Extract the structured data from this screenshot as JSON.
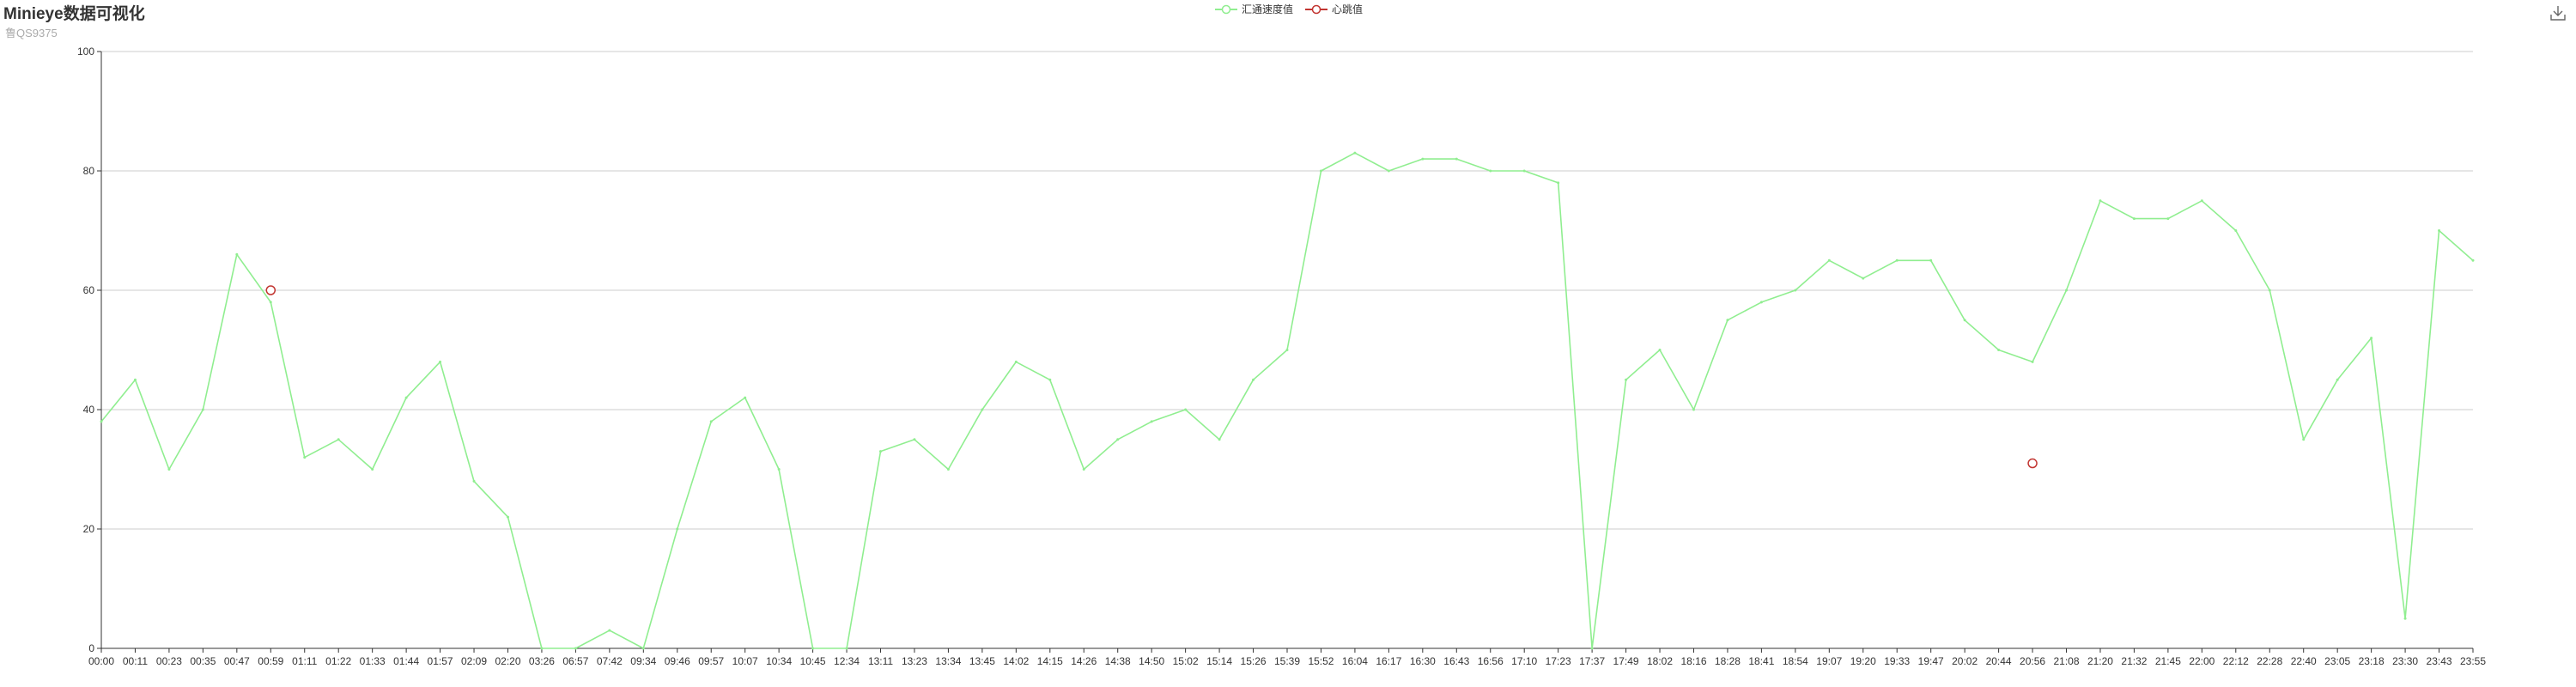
{
  "title": "Minieye数据可视化",
  "subtitle": "鲁QS9375",
  "toolbox": {
    "icon": "download-icon"
  },
  "colors": {
    "speed": "#90ee90",
    "heartbeat": "#c23531",
    "axis": "#333333",
    "grid": "#cccccc"
  },
  "chart_data": {
    "type": "line",
    "legend": [
      "汇通速度值",
      "心跳值"
    ],
    "legend_position": "top-center",
    "ylim": [
      0,
      100
    ],
    "yticks": [
      0,
      20,
      40,
      60,
      80,
      100
    ],
    "grid": true,
    "x": [
      "00:00",
      "00:11",
      "00:23",
      "00:35",
      "00:47",
      "00:59",
      "01:11",
      "01:22",
      "01:33",
      "01:44",
      "01:57",
      "02:09",
      "02:20",
      "03:26",
      "06:57",
      "07:42",
      "09:34",
      "09:46",
      "09:57",
      "10:07",
      "10:34",
      "10:45",
      "12:34",
      "13:11",
      "13:23",
      "13:34",
      "13:45",
      "14:02",
      "14:15",
      "14:26",
      "14:38",
      "14:50",
      "15:02",
      "15:14",
      "15:26",
      "15:39",
      "15:52",
      "16:04",
      "16:17",
      "16:30",
      "16:43",
      "16:56",
      "17:10",
      "17:23",
      "17:37",
      "17:49",
      "18:02",
      "18:16",
      "18:28",
      "18:41",
      "18:54",
      "19:07",
      "19:20",
      "19:33",
      "19:47",
      "20:02",
      "20:44",
      "20:56",
      "21:08",
      "21:20",
      "21:32",
      "21:45",
      "22:00",
      "22:12",
      "22:28",
      "22:40",
      "23:05",
      "23:18",
      "23:30",
      "23:43",
      "23:55"
    ],
    "series": [
      {
        "name": "汇通速度值",
        "type": "line",
        "values": [
          38,
          45,
          30,
          40,
          66,
          58,
          32,
          35,
          30,
          42,
          48,
          28,
          22,
          0,
          0,
          3,
          0,
          20,
          38,
          42,
          30,
          0,
          0,
          33,
          35,
          30,
          40,
          48,
          45,
          30,
          35,
          38,
          40,
          35,
          45,
          50,
          80,
          83,
          80,
          82,
          82,
          80,
          80,
          78,
          0,
          45,
          50,
          40,
          55,
          58,
          60,
          65,
          62,
          65,
          65,
          55,
          50,
          48,
          60,
          75,
          72,
          72,
          75,
          70,
          60,
          35,
          45,
          52,
          5,
          70,
          65
        ]
      },
      {
        "name": "心跳值",
        "type": "scatter",
        "points": [
          {
            "x": "00:59",
            "y": 60
          },
          {
            "x": "20:56",
            "y": 31
          }
        ]
      }
    ]
  }
}
